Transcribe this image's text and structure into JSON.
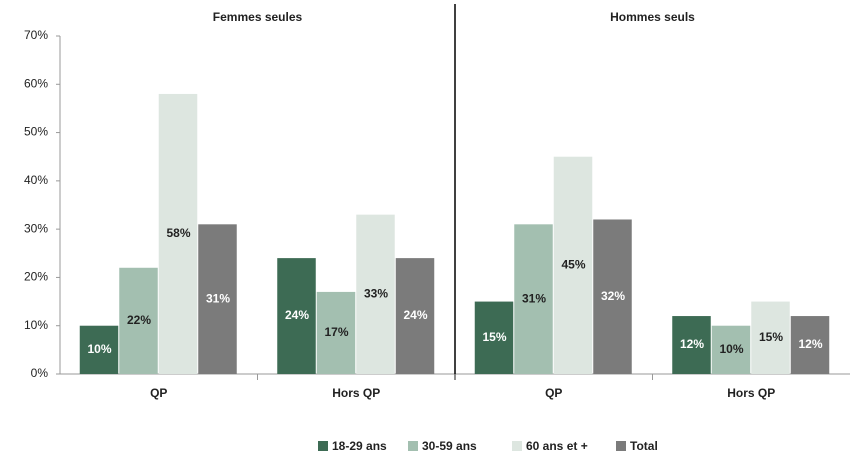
{
  "chart_data": {
    "type": "bar",
    "groups": [
      "Femmes seules",
      "Hommes seuls"
    ],
    "categories": [
      "QP",
      "Hors QP",
      "QP",
      "Hors QP"
    ],
    "series": [
      {
        "name": "18-29 ans",
        "color": "#3d6b54",
        "values": [
          10,
          24,
          15,
          12
        ],
        "value_labels": [
          "10%",
          "24%",
          "15%",
          "12%"
        ]
      },
      {
        "name": "30-59 ans",
        "color": "#a3bfb0",
        "values": [
          22,
          17,
          31,
          10
        ],
        "value_labels": [
          "22%",
          "17%",
          "31%",
          "10%"
        ]
      },
      {
        "name": "60 ans et +",
        "color": "#dde6e0",
        "values": [
          58,
          33,
          45,
          15
        ],
        "value_labels": [
          "58%",
          "33%",
          "45%",
          "15%"
        ]
      },
      {
        "name": "Total",
        "color": "#7b7b7b",
        "values": [
          31,
          24,
          32,
          12
        ],
        "value_labels": [
          "31%",
          "24%",
          "32%",
          "12%"
        ]
      }
    ],
    "ylim": [
      0,
      70
    ],
    "yticks": [
      {
        "value": 0,
        "label": "0%"
      },
      {
        "value": 10,
        "label": "10%"
      },
      {
        "value": 20,
        "label": "20%"
      },
      {
        "value": 30,
        "label": "30%"
      },
      {
        "value": 40,
        "label": "40%"
      },
      {
        "value": 50,
        "label": "50%"
      },
      {
        "value": 60,
        "label": "60%"
      },
      {
        "value": 70,
        "label": "70%"
      }
    ],
    "legend": "bottom"
  }
}
